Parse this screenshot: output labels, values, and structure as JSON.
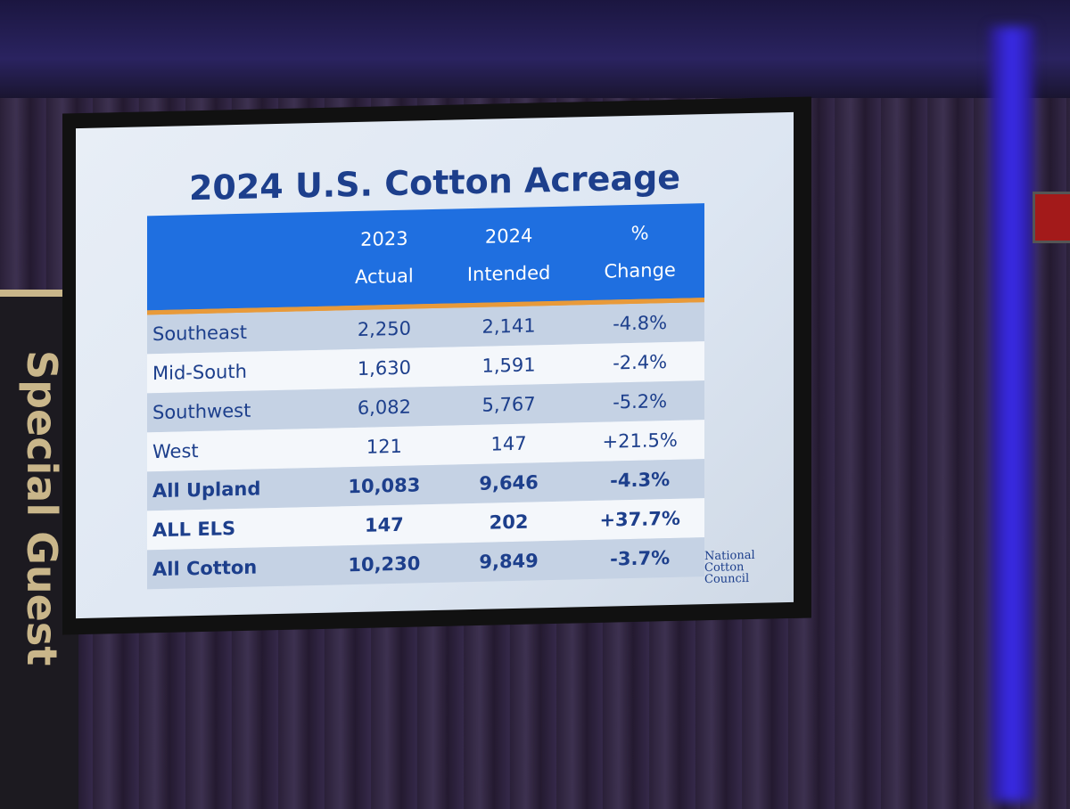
{
  "slide": {
    "title": "2024 U.S. Cotton Acreage",
    "table": {
      "header": [
        [
          "2023",
          "Actual"
        ],
        [
          "2024",
          "Intended"
        ],
        [
          "%",
          "Change"
        ]
      ],
      "rows": [
        [
          "Southeast",
          "2,250",
          "2,141",
          "-4.8%"
        ],
        [
          "Mid-South",
          "1,630",
          "1,591",
          "-2.4%"
        ],
        [
          "Southwest",
          "6,082",
          "5,767",
          "-5.2%"
        ],
        [
          "West",
          "121",
          "147",
          "+21.5%"
        ],
        [
          "All Upland",
          "10,083",
          "9,646",
          "-4.3%"
        ],
        [
          "ALL ELS",
          "147",
          "202",
          "+37.7%"
        ],
        [
          "All Cotton",
          "10,230",
          "9,849",
          "-3.7%"
        ]
      ]
    },
    "logo": [
      "National",
      "Cotton",
      "Council"
    ]
  },
  "banner": "Special Guest"
}
